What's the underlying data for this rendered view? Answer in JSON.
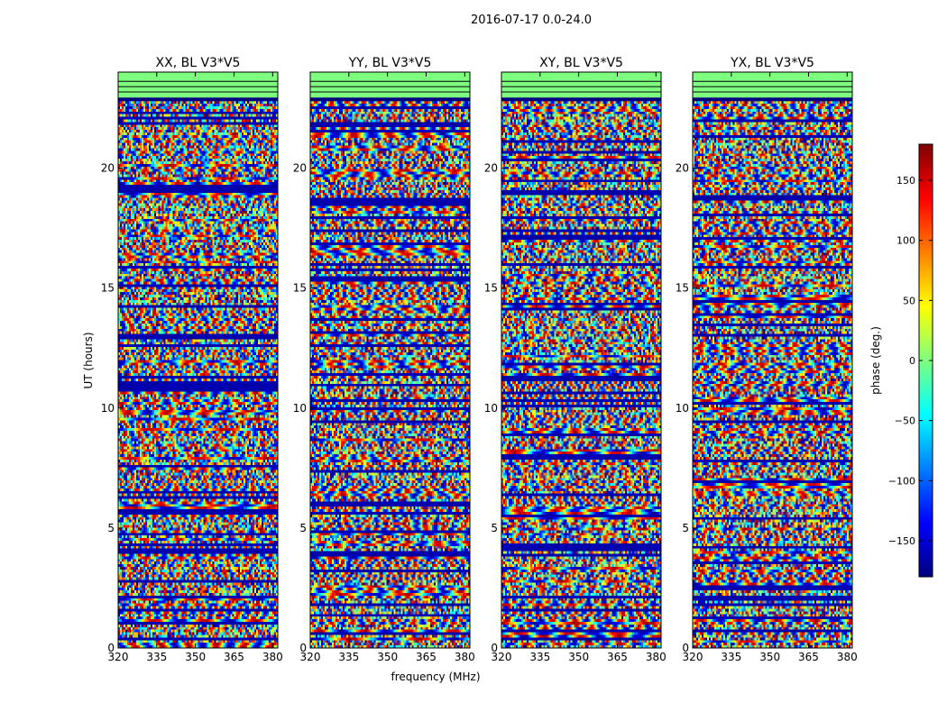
{
  "figure": {
    "suptitle": "2016-07-17 0.0-24.0",
    "xlabel": "frequency (MHz)",
    "ylabel": "UT (hours)"
  },
  "colorbar": {
    "label": "phase (deg.)",
    "range": [
      -180,
      180
    ],
    "ticks": [
      150,
      100,
      50,
      0,
      -50,
      -100,
      -150
    ],
    "tick_labels": [
      "150",
      "100",
      "50",
      "0",
      "−50",
      "−100",
      "−150"
    ],
    "colormap": "jet",
    "colors": [
      "#00007f",
      "#0000ff",
      "#007fff",
      "#00ffff",
      "#7fff7f",
      "#ffff00",
      "#ff7f00",
      "#ff0000",
      "#7f0000"
    ]
  },
  "chart_data": {
    "type": "heatmap",
    "description_note": "phase vs frequency and UT for baseline V3*V5",
    "xlim": [
      320,
      382
    ],
    "ylim": [
      0,
      24
    ],
    "xticks": [
      320,
      335,
      350,
      365,
      380
    ],
    "yticks": [
      0,
      5,
      10,
      15,
      20
    ],
    "x_unit": "MHz",
    "y_unit": "hours",
    "empty_band_hours": [
      22.9,
      24.0
    ],
    "empty_band_color": "#7fff7f",
    "panels": [
      {
        "title": "XX, BL V3*V5"
      },
      {
        "title": "YY, BL V3*V5"
      },
      {
        "title": "XY, BL V3*V5"
      },
      {
        "title": "YX, BL V3*V5"
      }
    ]
  }
}
